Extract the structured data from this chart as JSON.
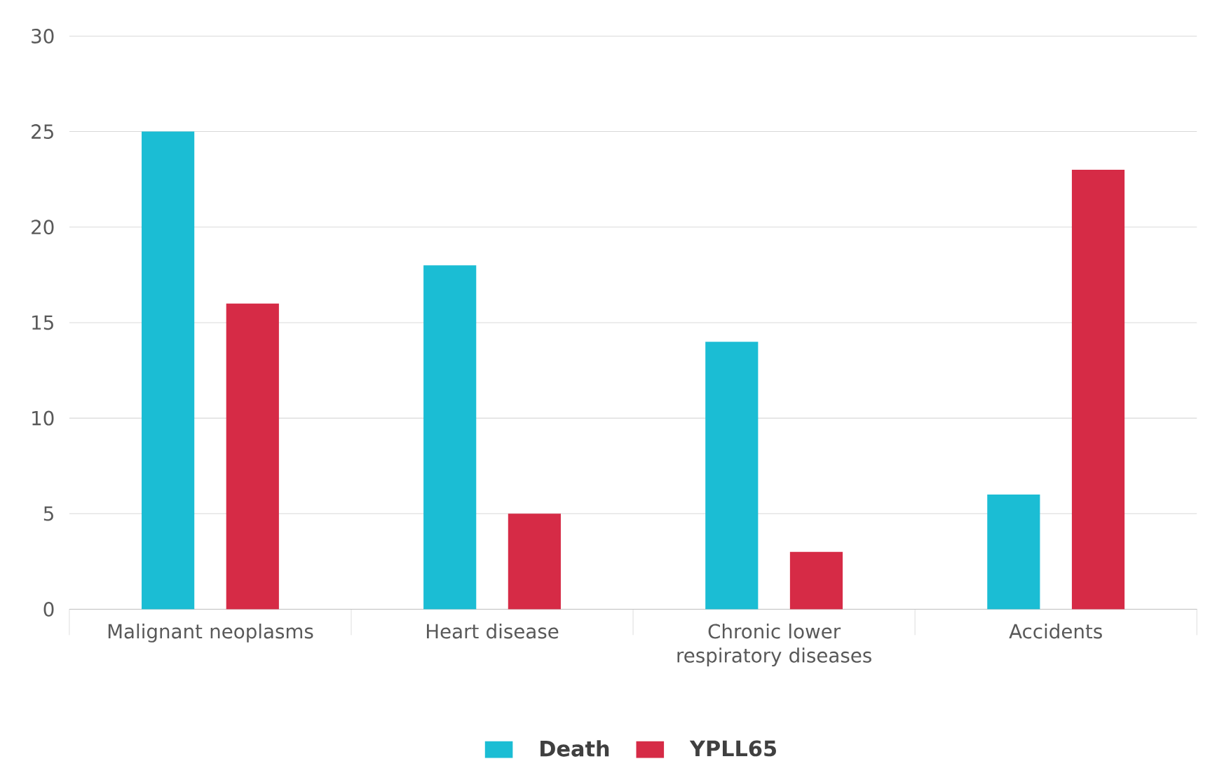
{
  "chart_data": {
    "type": "bar",
    "categories": [
      "Malignant neoplasms",
      "Heart disease",
      "Chronic lower respiratory diseases",
      "Accidents"
    ],
    "series": [
      {
        "name": "Death",
        "color": "#1bbdd4",
        "values": [
          25,
          18,
          14,
          6
        ]
      },
      {
        "name": "YPLL65",
        "color": "#d62b46",
        "values": [
          16,
          5,
          3,
          23
        ]
      }
    ],
    "ylim": [
      0,
      30
    ],
    "yticks": [
      0,
      5,
      10,
      15,
      20,
      25,
      30
    ],
    "grid": "y",
    "legend": "bottom"
  }
}
